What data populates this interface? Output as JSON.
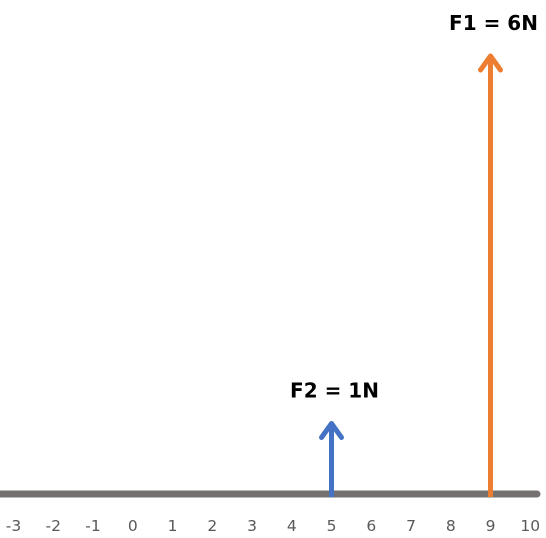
{
  "axis": {
    "min": -3,
    "max": 10,
    "ticks": [
      "-3",
      "-2",
      "-1",
      "0",
      "1",
      "2",
      "3",
      "4",
      "5",
      "6",
      "7",
      "8",
      "9",
      "10"
    ],
    "color": "#767171"
  },
  "forces": [
    {
      "label": "F1 = 6N",
      "position": 9,
      "magnitude": 6,
      "color": "#ED7D31"
    },
    {
      "label": "F2 = 1N",
      "position": 5,
      "magnitude": 1,
      "color": "#4472C4"
    }
  ]
}
